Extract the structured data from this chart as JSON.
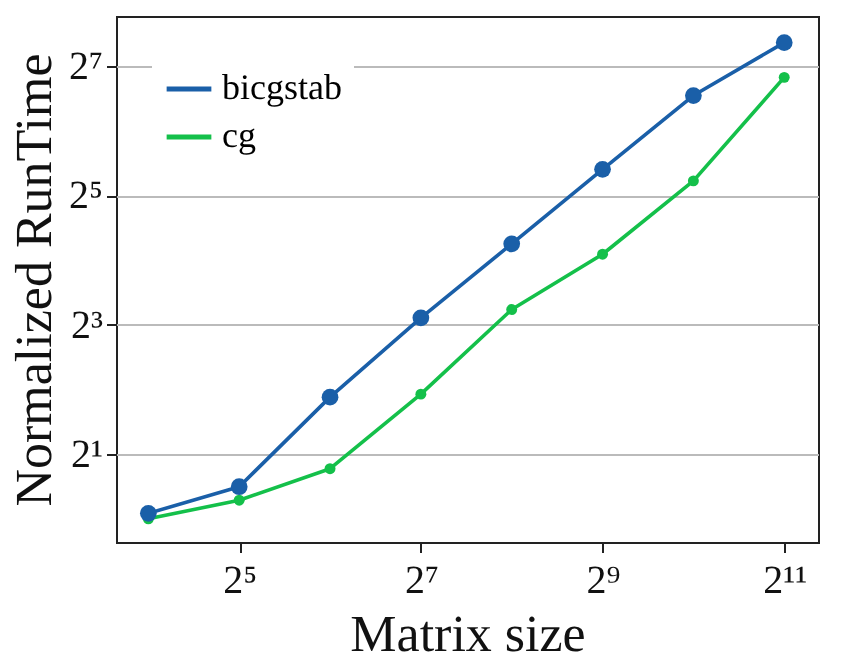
{
  "chart_data": {
    "type": "line",
    "xlabel": "Matrix size",
    "ylabel": "Normalized RunTime",
    "x": [
      16,
      32,
      64,
      128,
      256,
      512,
      1024,
      2048
    ],
    "series": [
      {
        "name": "bicgstab",
        "color": "#1a5fa8",
        "values": [
          1.06,
          1.41,
          3.68,
          8.6,
          19,
          42.2,
          93,
          164
        ]
      },
      {
        "name": "cg",
        "color": "#14c04a",
        "values": [
          1.0,
          1.22,
          1.71,
          3.8,
          9.4,
          17,
          37.3,
          113
        ]
      }
    ],
    "log": "xy",
    "xlim": [
      12.5,
      2650
    ],
    "ylim": [
      0.78,
      218
    ],
    "xticks": [
      {
        "value": 32,
        "label": "2⁵"
      },
      {
        "value": 128,
        "label": "2⁷"
      },
      {
        "value": 512,
        "label": "2⁹"
      },
      {
        "value": 2048,
        "label": "2¹¹"
      }
    ],
    "yticks": [
      {
        "value": 2,
        "label": "2¹"
      },
      {
        "value": 8,
        "label": "2³"
      },
      {
        "value": 32,
        "label": "2⁵"
      },
      {
        "value": 128,
        "label": "2⁷"
      }
    ],
    "grid": "y",
    "legend": "top left",
    "marker": "circle",
    "line_style": "solid"
  }
}
